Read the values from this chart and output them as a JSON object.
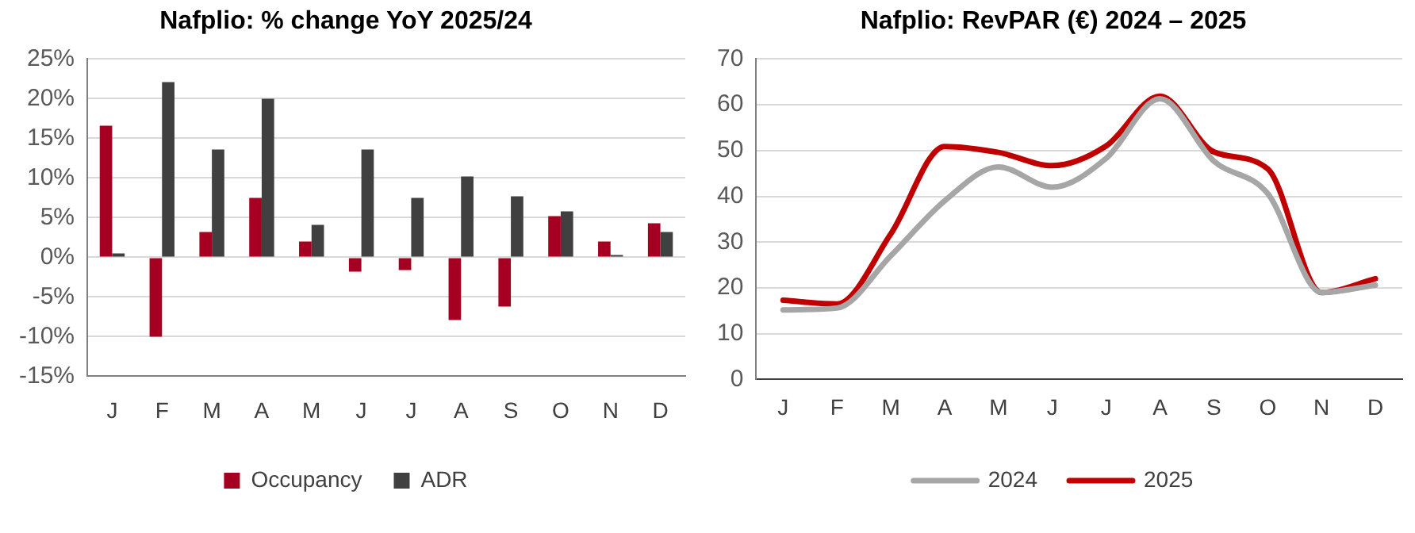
{
  "chart_data": [
    {
      "type": "bar",
      "title": "Nafplio: % change YoY 2025/24",
      "categories": [
        "J",
        "F",
        "M",
        "A",
        "M",
        "J",
        "J",
        "A",
        "S",
        "O",
        "N",
        "D"
      ],
      "series": [
        {
          "name": "Occupancy",
          "color": "#a50021",
          "values": [
            16.6,
            -10,
            3.2,
            7.5,
            2.0,
            -1.8,
            -1.6,
            -7.9,
            -6.2,
            5.2,
            2.0,
            4.3
          ]
        },
        {
          "name": "ADR",
          "color": "#404040",
          "values": [
            0.5,
            22.1,
            13.6,
            20.0,
            4.1,
            13.6,
            7.5,
            10.2,
            7.7,
            5.8,
            0.3,
            3.2
          ]
        }
      ],
      "ylim": [
        -15,
        25
      ],
      "yticks": [
        {
          "value": -15,
          "label": "-15%"
        },
        {
          "value": -10,
          "label": "-10%"
        },
        {
          "value": -5,
          "label": "-5%"
        },
        {
          "value": 0,
          "label": "0%"
        },
        {
          "value": 5,
          "label": "5%"
        },
        {
          "value": 10,
          "label": "10%"
        },
        {
          "value": 15,
          "label": "15%"
        },
        {
          "value": 20,
          "label": "20%"
        },
        {
          "value": 25,
          "label": "25%"
        }
      ],
      "grid": "y",
      "legend": "bottom"
    },
    {
      "type": "line",
      "title": "Nafplio: RevPAR (€) 2024 – 2025",
      "categories": [
        "J",
        "F",
        "M",
        "A",
        "M",
        "J",
        "J",
        "A",
        "S",
        "O",
        "N",
        "D"
      ],
      "series": [
        {
          "name": "2024",
          "color": "#a6a6a6",
          "values": [
            15.2,
            15.6,
            27,
            39,
            46.4,
            42,
            48.3,
            61.3,
            47.7,
            40.6,
            19,
            20.6
          ]
        },
        {
          "name": "2025",
          "color": "#c00000",
          "values": [
            17.3,
            16.5,
            31.8,
            50.9,
            49.6,
            46.7,
            51,
            61.9,
            49.7,
            46,
            19,
            22
          ]
        }
      ],
      "ylim": [
        0,
        70
      ],
      "yticks": [
        0,
        10,
        20,
        30,
        40,
        50,
        60,
        70
      ],
      "grid": "y",
      "legend": "bottom",
      "marker": "none",
      "line_style": "solid"
    }
  ]
}
